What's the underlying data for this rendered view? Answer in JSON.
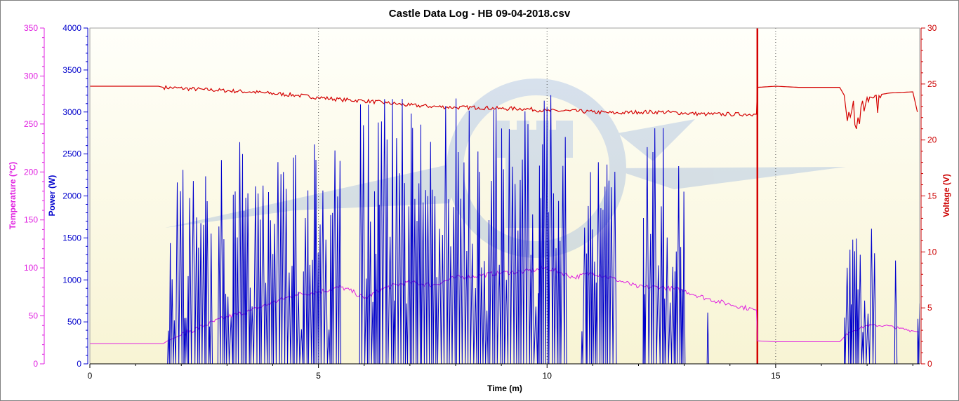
{
  "chart_data": {
    "type": "line",
    "title": "Castle Data Log - HB 09-04-2018.csv",
    "xlabel": "Time (m)",
    "x_ticks": [
      "0",
      "5",
      "10",
      "15"
    ],
    "xlim": [
      0,
      18.15
    ],
    "axes": {
      "temperature": {
        "label": "Temperature (°C)",
        "range": [
          0,
          350
        ],
        "ticks": [
          "0",
          "50",
          "100",
          "150",
          "200",
          "250",
          "300",
          "350"
        ],
        "color": "#e020e0"
      },
      "power": {
        "label": "Power (W)",
        "range": [
          0,
          4000
        ],
        "ticks": [
          "0",
          "500",
          "1000",
          "1500",
          "2000",
          "2500",
          "3000",
          "3500",
          "4000"
        ],
        "color": "#0000cc"
      },
      "voltage": {
        "label": "Voltage (V)",
        "range": [
          0,
          30
        ],
        "ticks": [
          "0",
          "5",
          "10",
          "15",
          "20",
          "25",
          "30"
        ],
        "color": "#cc0000"
      }
    },
    "grid": "vertical dotted",
    "series": [
      {
        "axis": "voltage",
        "color": "#d40000",
        "points": [
          [
            0,
            24.8
          ],
          [
            1.5,
            24.8
          ],
          [
            1.6,
            24.7
          ],
          [
            2.5,
            24.5
          ],
          [
            3.5,
            24.3
          ],
          [
            4.5,
            24.0
          ],
          [
            5.0,
            23.8
          ],
          [
            5.5,
            23.6
          ],
          [
            6.0,
            23.5
          ],
          [
            6.5,
            23.3
          ],
          [
            7.0,
            23.1
          ],
          [
            7.5,
            23.0
          ],
          [
            8.0,
            22.9
          ],
          [
            8.5,
            22.9
          ],
          [
            9.0,
            22.8
          ],
          [
            9.5,
            22.8
          ],
          [
            10.0,
            22.6
          ],
          [
            10.5,
            22.6
          ],
          [
            11.0,
            22.5
          ],
          [
            11.5,
            22.4
          ],
          [
            12.0,
            22.5
          ],
          [
            12.5,
            22.5
          ],
          [
            13.0,
            22.4
          ],
          [
            13.5,
            22.3
          ],
          [
            14.0,
            22.3
          ],
          [
            14.58,
            22.3
          ],
          [
            14.6,
            24.7
          ],
          [
            15.0,
            24.8
          ],
          [
            15.5,
            24.7
          ],
          [
            16.0,
            24.7
          ],
          [
            16.4,
            24.7
          ],
          [
            16.5,
            24.0
          ],
          [
            16.6,
            22.5
          ],
          [
            16.7,
            23.5
          ],
          [
            16.8,
            22.0
          ],
          [
            16.9,
            23.5
          ],
          [
            17.0,
            23.8
          ],
          [
            17.2,
            24.0
          ],
          [
            17.5,
            24.2
          ],
          [
            18.0,
            24.3
          ],
          [
            18.1,
            22.5
          ]
        ]
      },
      {
        "axis": "temperature",
        "color": "#e020e0",
        "points": [
          [
            0,
            21
          ],
          [
            1.6,
            21
          ],
          [
            1.7,
            24
          ],
          [
            2.0,
            30
          ],
          [
            2.5,
            40
          ],
          [
            3.0,
            49
          ],
          [
            3.5,
            55
          ],
          [
            4.0,
            64
          ],
          [
            4.5,
            72
          ],
          [
            5.0,
            75
          ],
          [
            5.5,
            80
          ],
          [
            5.8,
            74
          ],
          [
            6.0,
            68
          ],
          [
            6.5,
            80
          ],
          [
            7.0,
            85
          ],
          [
            7.5,
            82
          ],
          [
            8.0,
            90
          ],
          [
            8.5,
            92
          ],
          [
            9.0,
            95
          ],
          [
            9.5,
            96
          ],
          [
            10.0,
            100
          ],
          [
            10.3,
            95
          ],
          [
            10.6,
            90
          ],
          [
            11.0,
            95
          ],
          [
            11.5,
            88
          ],
          [
            12.0,
            80
          ],
          [
            12.5,
            80
          ],
          [
            13.0,
            76
          ],
          [
            13.5,
            68
          ],
          [
            14.0,
            62
          ],
          [
            14.58,
            56
          ],
          [
            14.6,
            24
          ],
          [
            15.0,
            23
          ],
          [
            15.5,
            23
          ],
          [
            16.0,
            23
          ],
          [
            16.4,
            23
          ],
          [
            16.6,
            33
          ],
          [
            17.0,
            40
          ],
          [
            17.4,
            40
          ],
          [
            17.7,
            37
          ],
          [
            18.15,
            33
          ]
        ]
      },
      {
        "axis": "power",
        "color": "#0000cc",
        "bursts": [
          [
            1.7,
            2.65,
            2450
          ],
          [
            2.8,
            5.5,
            2700
          ],
          [
            5.9,
            10.4,
            3200
          ],
          [
            10.75,
            11.5,
            2450
          ],
          [
            12.1,
            13.0,
            2850
          ],
          [
            13.5,
            13.5,
            800
          ],
          [
            16.5,
            17.2,
            1650
          ],
          [
            17.6,
            17.6,
            1880
          ],
          [
            18.1,
            18.15,
            1050
          ]
        ]
      }
    ]
  }
}
